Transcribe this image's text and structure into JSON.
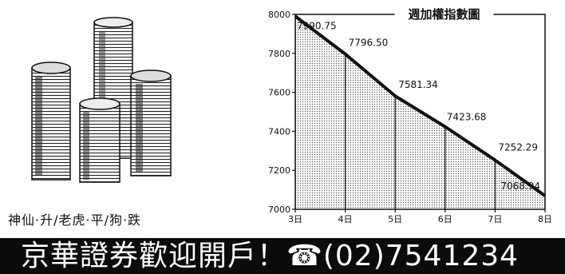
{
  "caption": "神仙·升/老虎·平/狗·跌",
  "banner": "京華證券歡迎開戶！☎(02)7541234",
  "chart_data": {
    "type": "area",
    "title": "週加權指數圖",
    "xlabel": "",
    "ylabel": "",
    "categories": [
      "3日",
      "4日",
      "5日",
      "6日",
      "7日",
      "8日"
    ],
    "values": [
      7990.75,
      7796.5,
      7581.34,
      7423.68,
      7252.29,
      7068.94
    ],
    "data_labels": [
      "7990.75",
      "7796.50",
      "7581.34",
      "7423.68",
      "7252.29",
      "7068.94"
    ],
    "y_ticks": [
      7000,
      7200,
      7400,
      7600,
      7800,
      8000
    ],
    "ylim": [
      7000,
      8000
    ],
    "grid": false,
    "legend": "none"
  }
}
